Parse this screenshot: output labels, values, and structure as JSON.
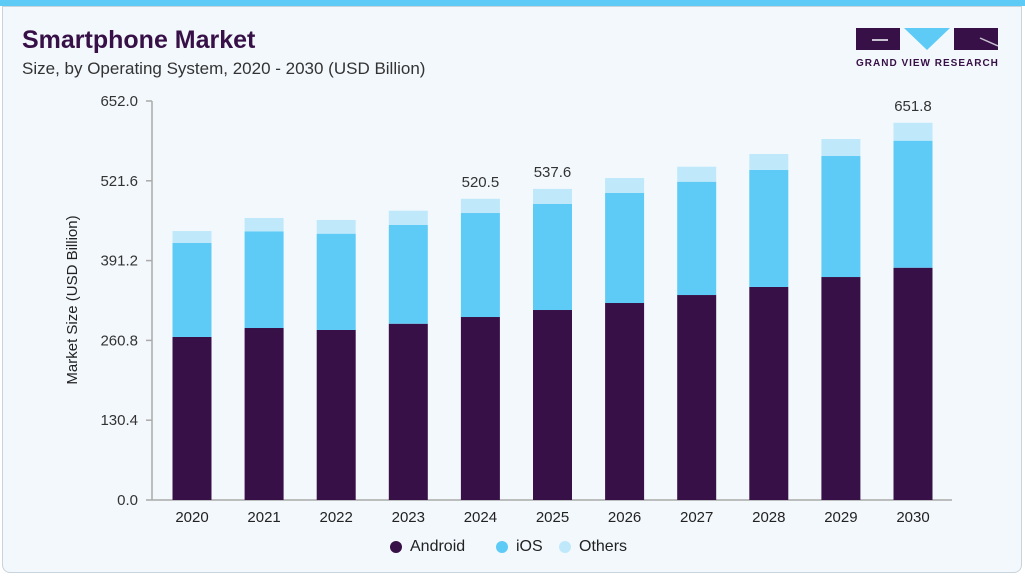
{
  "header": {
    "title": "Smartphone Market",
    "subtitle": "Size, by Operating System, 2020 - 2030 (USD Billion)"
  },
  "logo": {
    "text": "GRAND VIEW RESEARCH"
  },
  "chart_data": {
    "type": "bar",
    "stacked": true,
    "ylabel": "Market Size (USD Billion)",
    "xlabel": "",
    "ylim": [
      0,
      652.0
    ],
    "yticks": [
      "0.0",
      "130.4",
      "260.8",
      "391.2",
      "521.6",
      "652.0"
    ],
    "grid": false,
    "legend_placement": "bottom",
    "categories": [
      "2020",
      "2021",
      "2022",
      "2023",
      "2024",
      "2025",
      "2026",
      "2027",
      "2028",
      "2029",
      "2030"
    ],
    "series": [
      {
        "name": "Android",
        "color": "#371047",
        "values": [
          281.7,
          297.2,
          293.8,
          304.6,
          316.2,
          328.3,
          340.4,
          354.2,
          368.1,
          385.3,
          401.4
        ]
      },
      {
        "name": "iOS",
        "color": "#5ecbf7",
        "values": [
          162.4,
          167.1,
          166.4,
          170.6,
          179.7,
          183.2,
          190.1,
          195.8,
          202.2,
          209.1,
          219.5
        ]
      },
      {
        "name": "Others",
        "color": "#bfe9fa",
        "values": [
          20.7,
          23.0,
          23.7,
          24.7,
          24.6,
          26.1,
          25.9,
          25.9,
          27.6,
          29.4,
          30.9
        ]
      }
    ],
    "annotations": [
      {
        "category": "2024",
        "label": "520.5"
      },
      {
        "category": "2025",
        "label": "537.6"
      },
      {
        "category": "2030",
        "label": "651.8"
      }
    ]
  }
}
